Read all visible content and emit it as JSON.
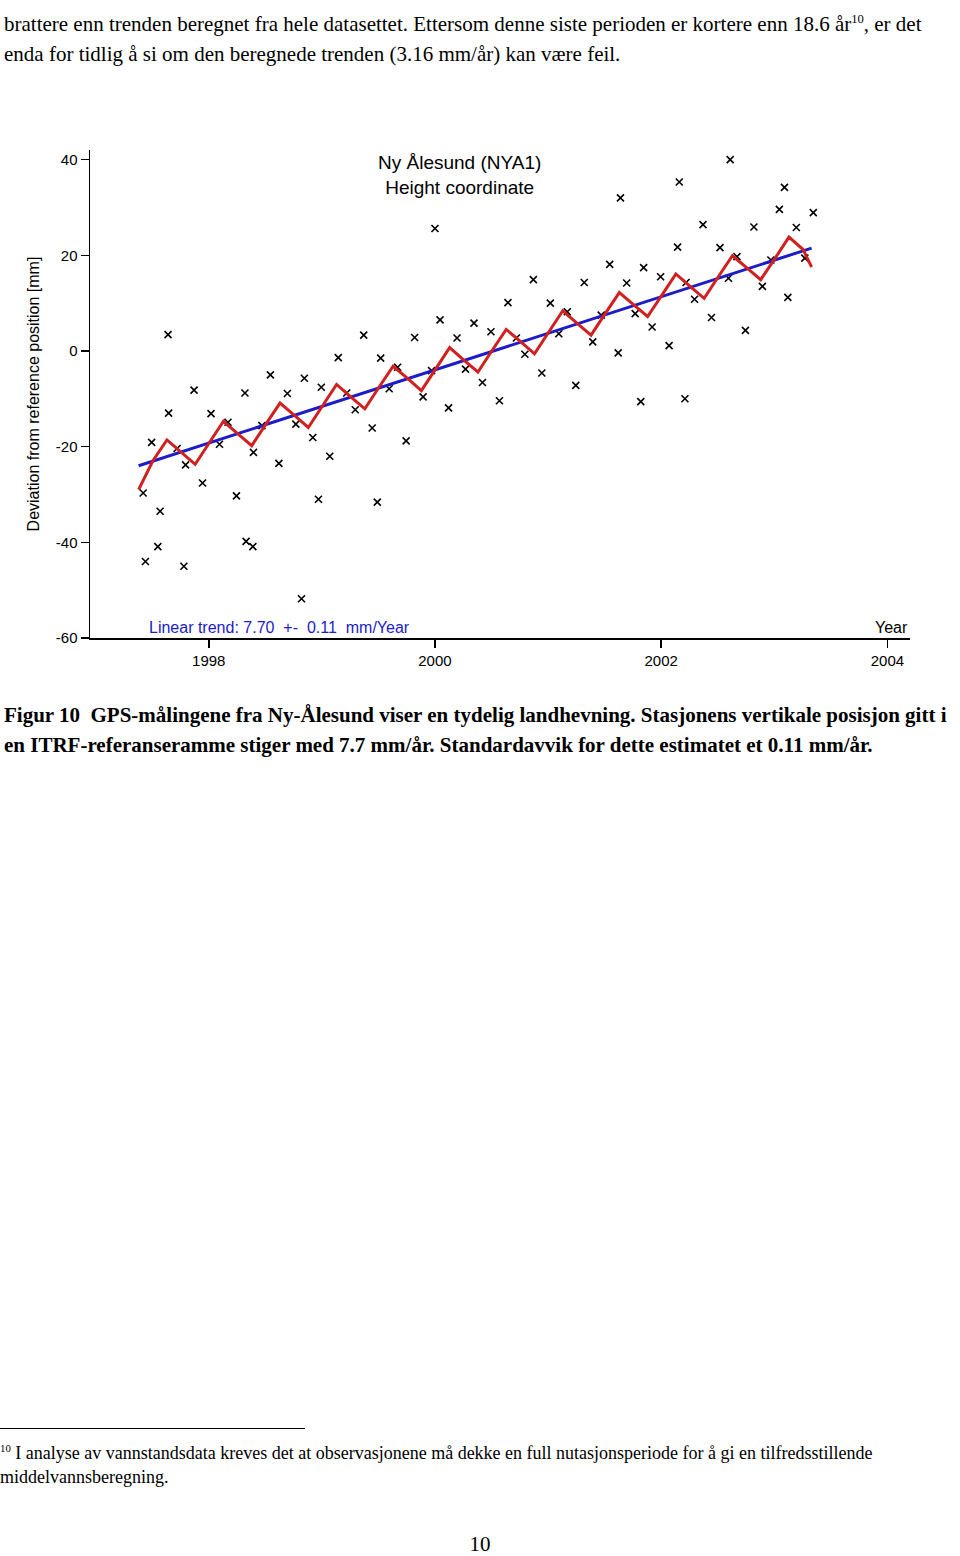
{
  "page": {
    "intro": {
      "before": "brattere enn trenden beregnet fra hele datasettet. Ettersom denne siste perioden er kortere enn 18.6 år",
      "note_ref": "10",
      "after": ", er det enda for tidlig å si om den beregnede trenden (3.16 mm/år) kan være feil."
    },
    "caption": {
      "label": "Figur 10",
      "text": "GPS-målingene fra Ny-Ålesund viser en tydelig landhevning. Stasjonens vertikale posisjon gitt i en ITRF-referanseramme stiger med 7.7 mm/år.  Standardavvik for dette estimatet et 0.11 mm/år."
    },
    "footnote": {
      "mark": "10",
      "text": "I analyse av vannstandsdata kreves det at observasjonene må dekke en full nutasjonsperiode for å gi en tilfredsstillende middelvannsberegning."
    },
    "page_number": "10"
  },
  "chart_data": {
    "type": "scatter",
    "title": "Ny Ålesund (NYA1)",
    "subtitle": "Height coordinate",
    "x_label": "Year",
    "y_label": "Deviation from reference position [mm]",
    "annotations": [
      "Linear trend: 7.70  +-  0.11  mm/Year"
    ],
    "xlim": [
      1996.95,
      2004.2
    ],
    "ylim": [
      -60,
      42
    ],
    "xticks": [
      1998,
      2000,
      2002,
      2004
    ],
    "yticks": [
      -60,
      -40,
      -20,
      0,
      20,
      40
    ],
    "grid": false,
    "series": [
      {
        "type": "scatter",
        "marker": "x",
        "color": "#000000",
        "x": [
          1997.42,
          1997.495,
          1997.57,
          1997.645,
          1997.72,
          1997.795,
          1997.87,
          1997.945,
          1998.02,
          1998.095,
          1998.17,
          1998.245,
          1998.32,
          1998.395,
          1998.47,
          1998.545,
          1998.62,
          1998.695,
          1998.77,
          1998.845,
          1998.92,
          1998.995,
          1999.07,
          1999.145,
          1999.22,
          1999.295,
          1999.37,
          1999.445,
          1999.52,
          1999.595,
          1999.67,
          1999.745,
          1999.82,
          1999.895,
          1999.97,
          2000.045,
          2000.12,
          2000.195,
          2000.27,
          2000.345,
          2000.42,
          2000.495,
          2000.57,
          2000.645,
          2000.72,
          2000.795,
          2000.87,
          2000.945,
          2001.02,
          2001.095,
          2001.17,
          2001.245,
          2001.32,
          2001.395,
          2001.47,
          2001.545,
          2001.62,
          2001.695,
          2001.77,
          2001.845,
          2001.92,
          2001.995,
          2002.07,
          2002.145,
          2002.22,
          2002.295,
          2002.37,
          2002.445,
          2002.52,
          2002.595,
          2002.67,
          2002.745,
          2002.82,
          2002.895,
          2002.97,
          2003.045,
          2003.12,
          2003.195,
          2003.27,
          2003.345,
          1997.64,
          1997.78,
          1998.82,
          1998.97,
          1999.49,
          2000.0,
          2002.61,
          2002.16,
          2001.64,
          2003.09,
          2001.82,
          2002.21,
          1997.44,
          1997.55,
          1998.33,
          1998.39
        ],
        "values": [
          -29.7,
          -19.1,
          -33.5,
          -13.0,
          -20.4,
          -23.8,
          -8.2,
          -27.6,
          -13.1,
          -19.5,
          -14.9,
          -30.3,
          -8.8,
          -21.2,
          -15.6,
          -5.0,
          -23.5,
          -8.9,
          -15.3,
          -5.7,
          -18.1,
          -7.6,
          -22.0,
          -1.4,
          -8.8,
          -12.3,
          3.3,
          -16.1,
          -1.5,
          -7.9,
          -3.4,
          -18.8,
          2.8,
          -9.6,
          -4.1,
          6.5,
          -11.9,
          2.7,
          -3.8,
          5.8,
          -6.6,
          4.0,
          -10.4,
          10.1,
          2.7,
          -0.7,
          14.9,
          -4.6,
          10.0,
          3.6,
          8.2,
          -7.2,
          14.3,
          1.9,
          7.5,
          18.1,
          -0.4,
          14.2,
          7.8,
          17.4,
          5.0,
          15.5,
          1.1,
          21.7,
          14.3,
          10.8,
          26.4,
          7.0,
          21.6,
          15.2,
          19.7,
          4.3,
          25.9,
          13.5,
          19.0,
          29.6,
          11.2,
          25.8,
          19.4,
          28.9,
          3.4,
          -45.0,
          -51.8,
          -31.0,
          -31.6,
          25.6,
          40.0,
          35.3,
          32.0,
          34.2,
          -10.6,
          -10.0,
          -44.0,
          -40.9,
          -39.8,
          -40.9
        ]
      },
      {
        "type": "line",
        "line_style": "solid",
        "color": "#1c1cc8",
        "x": [
          1997.38,
          2003.33
        ],
        "values": [
          -24.0,
          21.5
        ]
      },
      {
        "type": "line",
        "line_style": "solid",
        "color": "#d02020",
        "x": [
          1997.38,
          1997.505,
          1997.63,
          1997.755,
          1997.88,
          1998.005,
          1998.13,
          1998.255,
          1998.38,
          1998.505,
          1998.63,
          1998.755,
          1998.88,
          1999.005,
          1999.13,
          1999.255,
          1999.38,
          1999.505,
          1999.63,
          1999.755,
          1999.88,
          2000.005,
          2000.13,
          2000.255,
          2000.38,
          2000.505,
          2000.63,
          2000.755,
          2000.88,
          2001.005,
          2001.13,
          2001.255,
          2001.38,
          2001.505,
          2001.63,
          2001.755,
          2001.88,
          2002.005,
          2002.13,
          2002.255,
          2002.38,
          2002.505,
          2002.63,
          2002.755,
          2002.88,
          2003.005,
          2003.13,
          2003.255,
          2003.33
        ],
        "values": [
          -29.0,
          -23.0,
          -18.6,
          -21.1,
          -23.7,
          -19.2,
          -14.7,
          -17.3,
          -19.8,
          -15.3,
          -10.9,
          -13.4,
          -16.0,
          -11.5,
          -7.0,
          -9.6,
          -12.1,
          -7.6,
          -3.2,
          -5.7,
          -8.3,
          -3.8,
          0.7,
          -1.9,
          -4.4,
          0.1,
          4.5,
          2.0,
          -0.6,
          3.9,
          8.4,
          5.8,
          3.3,
          7.8,
          12.2,
          9.7,
          7.2,
          11.6,
          16.1,
          13.5,
          11.0,
          15.5,
          19.9,
          17.4,
          14.9,
          19.3,
          23.8,
          21.2,
          17.5
        ]
      }
    ]
  }
}
